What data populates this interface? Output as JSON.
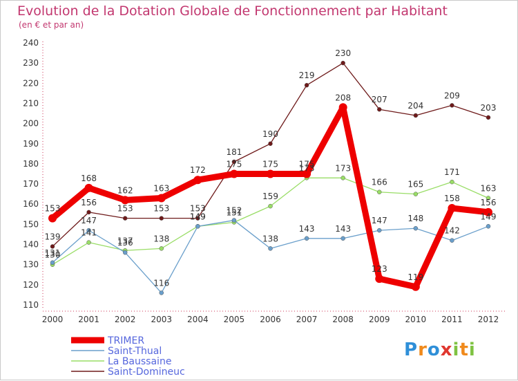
{
  "chart_data": {
    "type": "line",
    "title": "Evolution de la Dotation Globale de Fonctionnement par Habitant",
    "subtitle": "(en € et par an)",
    "xlabel": "",
    "ylabel": "",
    "x": [
      "2000",
      "2001",
      "2002",
      "2003",
      "2004",
      "2005",
      "2006",
      "2007",
      "2008",
      "2009",
      "2010",
      "2011",
      "2012"
    ],
    "ylim": [
      110,
      240
    ],
    "yticks": [
      110,
      120,
      130,
      140,
      150,
      160,
      170,
      180,
      190,
      200,
      210,
      220,
      230,
      240
    ],
    "grid": false,
    "legend": "bottom-left",
    "series": [
      {
        "name": "TRIMER",
        "color": "#ee0000",
        "values": [
          153,
          168,
          162,
          163,
          172,
          175,
          175,
          175,
          208,
          123,
          119,
          158,
          156
        ]
      },
      {
        "name": "Saint-Thual",
        "color": "#6a9fcb",
        "values": [
          131,
          147,
          136,
          116,
          149,
          152,
          138,
          143,
          143,
          147,
          148,
          142,
          149
        ]
      },
      {
        "name": "La Baussaine",
        "color": "#99dd66",
        "values": [
          130,
          141,
          137,
          138,
          149,
          151,
          159,
          173,
          173,
          166,
          165,
          171,
          163
        ]
      },
      {
        "name": "Saint-Domineuc",
        "color": "#6e1a1a",
        "values": [
          139,
          156,
          153,
          153,
          153,
          181,
          190,
          219,
          230,
          207,
          204,
          209,
          203
        ]
      }
    ]
  },
  "logo": {
    "text": "Proxiti",
    "letters": [
      "P",
      "r",
      "o",
      "x",
      "i",
      "t",
      "i"
    ],
    "colors": [
      "#2f8fd8",
      "#f08a1c",
      "#2f8fd8",
      "#e0372f",
      "#7fc242",
      "#f08a1c",
      "#7fc242"
    ]
  }
}
